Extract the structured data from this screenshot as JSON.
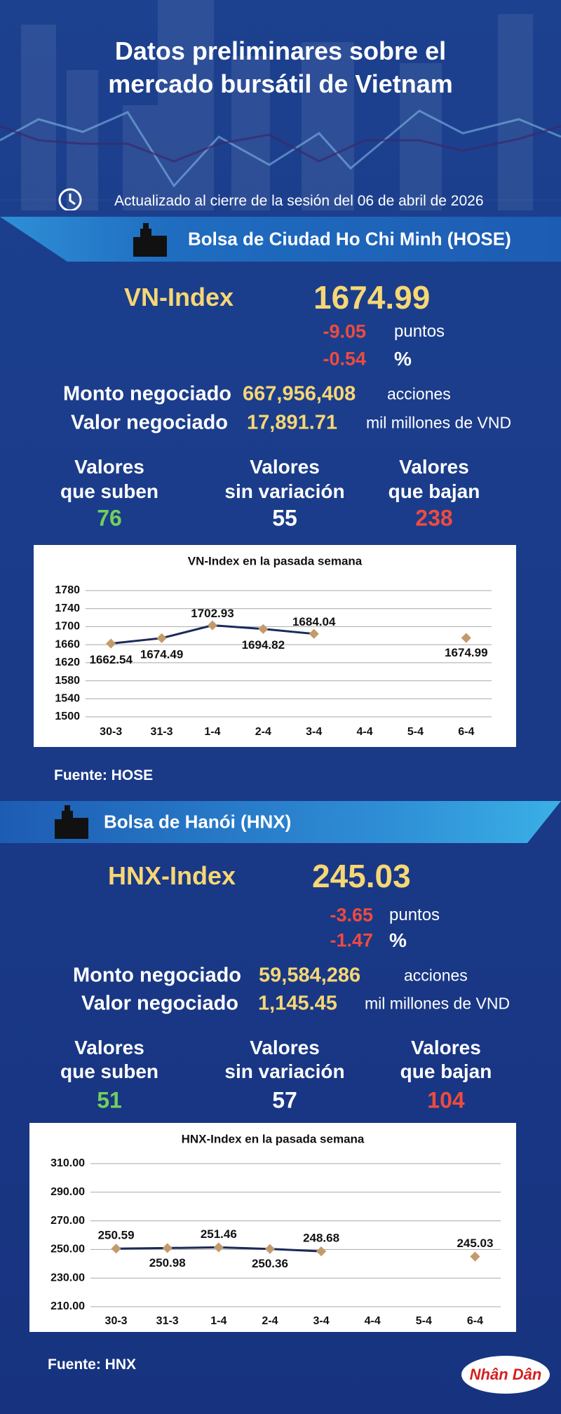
{
  "header": {
    "title_lines": [
      "Datos preliminares sobre el",
      "mercado bursátil de Vietnam"
    ],
    "updated": "Actualizado al cierre de la sesión del 06 de abril de 2026"
  },
  "sections": [
    {
      "exchange": "Bolsa de Ciudad Ho Chi Minh (HOSE)",
      "index_name": "VN-Index",
      "index_value": "1674.99",
      "change": "-9.05",
      "change_unit": "puntos",
      "percent": "-0.54",
      "percent_unit": "%",
      "volume_label": "Monto negociado",
      "volume": "667,956,408",
      "volume_unit": "acciones",
      "value_label": "Valor negociado",
      "value": "17,891.71",
      "value_unit": "mil millones de VND",
      "advancers_label": [
        "Valores",
        "que suben"
      ],
      "advancers": "76",
      "unchanged_label": [
        "Valores",
        "sin variación"
      ],
      "unchanged": "55",
      "decliners_label": [
        "Valores",
        "que bajan"
      ],
      "decliners": "238",
      "source": "Fuente: HOSE"
    },
    {
      "exchange": "Bolsa de Hanói (HNX)",
      "index_name": "HNX-Index",
      "index_value": "245.03",
      "change": "-3.65",
      "change_unit": "puntos",
      "percent": "-1.47",
      "percent_unit": "%",
      "volume_label": "Monto negociado",
      "volume": "59,584,286",
      "volume_unit": "acciones",
      "value_label": "Valor negociado",
      "value": "1,145.45",
      "value_unit": "mil millones de VND",
      "advancers_label": [
        "Valores",
        "que suben"
      ],
      "advancers": "51",
      "unchanged_label": [
        "Valores",
        "sin variación"
      ],
      "unchanged": "57",
      "decliners_label": [
        "Valores",
        "que bajan"
      ],
      "decliners": "104",
      "source": "Fuente:  HNX"
    }
  ],
  "logo": "Nhân Dân",
  "chart_data": [
    {
      "type": "line",
      "title": "VN-Index en la pasada semana",
      "categories": [
        "30-3",
        "31-3",
        "1-4",
        "2-4",
        "3-4",
        "4-4",
        "5-4",
        "6-4"
      ],
      "values": [
        1662.54,
        1674.49,
        1702.93,
        1694.82,
        1684.04,
        null,
        null,
        1674.99
      ],
      "ylim": [
        1500,
        1780
      ],
      "yticks": [
        1500,
        1540,
        1580,
        1620,
        1660,
        1700,
        1740,
        1780
      ],
      "grid": true,
      "line_color": "#1a2a5a",
      "marker_color": "#c49a6c"
    },
    {
      "type": "line",
      "title": "HNX-Index en la pasada semana",
      "categories": [
        "30-3",
        "31-3",
        "1-4",
        "2-4",
        "3-4",
        "4-4",
        "5-4",
        "6-4"
      ],
      "values": [
        250.59,
        250.98,
        251.46,
        250.36,
        248.68,
        null,
        null,
        245.03
      ],
      "ylim": [
        210,
        310
      ],
      "yticks": [
        {
          "value": 210,
          "label": "210.00"
        },
        {
          "value": 230,
          "label": "230.00"
        },
        {
          "value": 250,
          "label": "250.00"
        },
        {
          "value": 270,
          "label": "270.00"
        },
        {
          "value": 290,
          "label": "290.00"
        },
        {
          "value": 310,
          "label": "310.00"
        }
      ],
      "grid": true,
      "line_color": "#1a2a5a",
      "marker_color": "#c49a6c"
    }
  ]
}
